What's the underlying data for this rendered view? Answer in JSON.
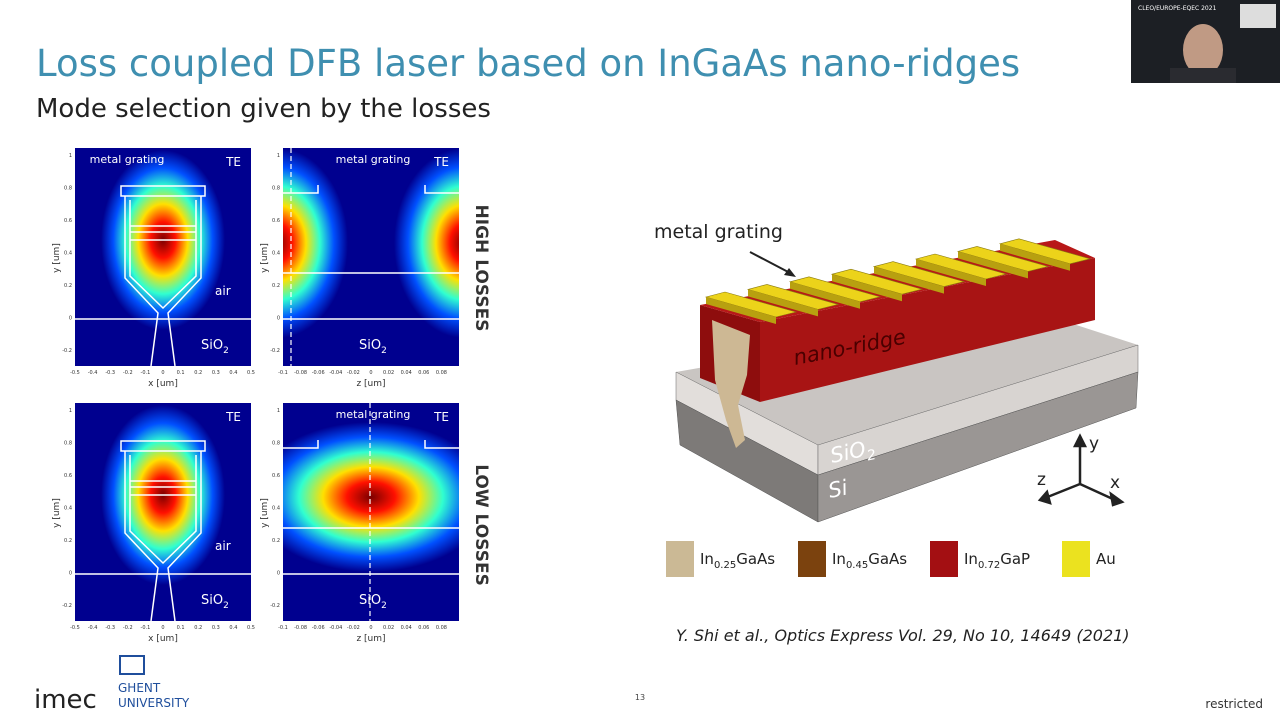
{
  "slide": {
    "title": "Loss coupled DFB laser based on InGaAs nano-ridges",
    "subtitle": "Mode selection given by the losses",
    "plots": [
      {
        "tag": "TE",
        "grating": "metal grating",
        "air": "air",
        "substrate": {
          "base": "SiO",
          "sub": "2"
        },
        "xlabel": "x [um]",
        "ylabel": "y [um]",
        "xticks": [
          -0.5,
          -0.4,
          -0.3,
          -0.2,
          -0.1,
          0,
          0.1,
          0.2,
          0.3,
          0.4,
          0.5
        ],
        "yticks": [
          -0.2,
          0,
          0.2,
          0.4,
          0.6,
          0.8,
          1
        ]
      },
      {
        "tag": "TE",
        "grating": "metal grating",
        "substrate": {
          "base": "SiO",
          "sub": "2"
        },
        "xlabel": "z [um]",
        "ylabel": "y [um]",
        "xticks": [
          -0.1,
          -0.08,
          -0.06,
          -0.04,
          -0.02,
          0,
          0.02,
          0.04,
          0.06,
          0.08
        ],
        "yticks": [
          -0.2,
          0,
          0.2,
          0.4,
          0.6,
          0.8,
          1
        ]
      },
      {
        "tag": "TE",
        "air": "air",
        "substrate": {
          "base": "SiO",
          "sub": "2"
        },
        "xlabel": "x [um]",
        "ylabel": "y [um]",
        "xticks": [
          -0.5,
          -0.4,
          -0.3,
          -0.2,
          -0.1,
          0,
          0.1,
          0.2,
          0.3,
          0.4,
          0.5
        ],
        "yticks": [
          -0.2,
          0,
          0.2,
          0.4,
          0.6,
          0.8,
          1
        ]
      },
      {
        "tag": "TE",
        "grating": "metal grating",
        "substrate": {
          "base": "SiO",
          "sub": "2"
        },
        "xlabel": "z [um]",
        "ylabel": "y [um]",
        "xticks": [
          -0.1,
          -0.08,
          -0.06,
          -0.04,
          -0.02,
          0,
          0.02,
          0.04,
          0.06,
          0.08
        ],
        "yticks": [
          -0.2,
          0,
          0.2,
          0.4,
          0.6,
          0.8,
          1
        ]
      }
    ],
    "row_labels": [
      "HIGH LOSSES",
      "LOW LOSSES"
    ],
    "diagram": {
      "grating": "metal grating",
      "ridge": "nano-ridge",
      "oxide": {
        "base": "SiO",
        "sub": "2"
      },
      "silicon": "Si",
      "axes": {
        "y": "y",
        "z": "z",
        "x": "x"
      }
    },
    "legend": [
      {
        "base": "In",
        "sub": "0.25",
        "rest": "GaAs"
      },
      {
        "base": "In",
        "sub": "0.45",
        "rest": "GaAs"
      },
      {
        "base": "In",
        "sub": "0.72",
        "rest": "GaP"
      },
      {
        "base": "Au"
      }
    ],
    "citation": {
      "authors": "Y. Shi et al.,",
      "journal": "Optics Express Vol. 29, No 10, 14649 (2021)"
    },
    "page_number": "13",
    "classification": "restricted",
    "logos": {
      "imec": "imec",
      "ghent": "GHENT",
      "university": "UNIVERSITY"
    },
    "webcam": "CLEO/EUROPE-EQEC 2021"
  }
}
